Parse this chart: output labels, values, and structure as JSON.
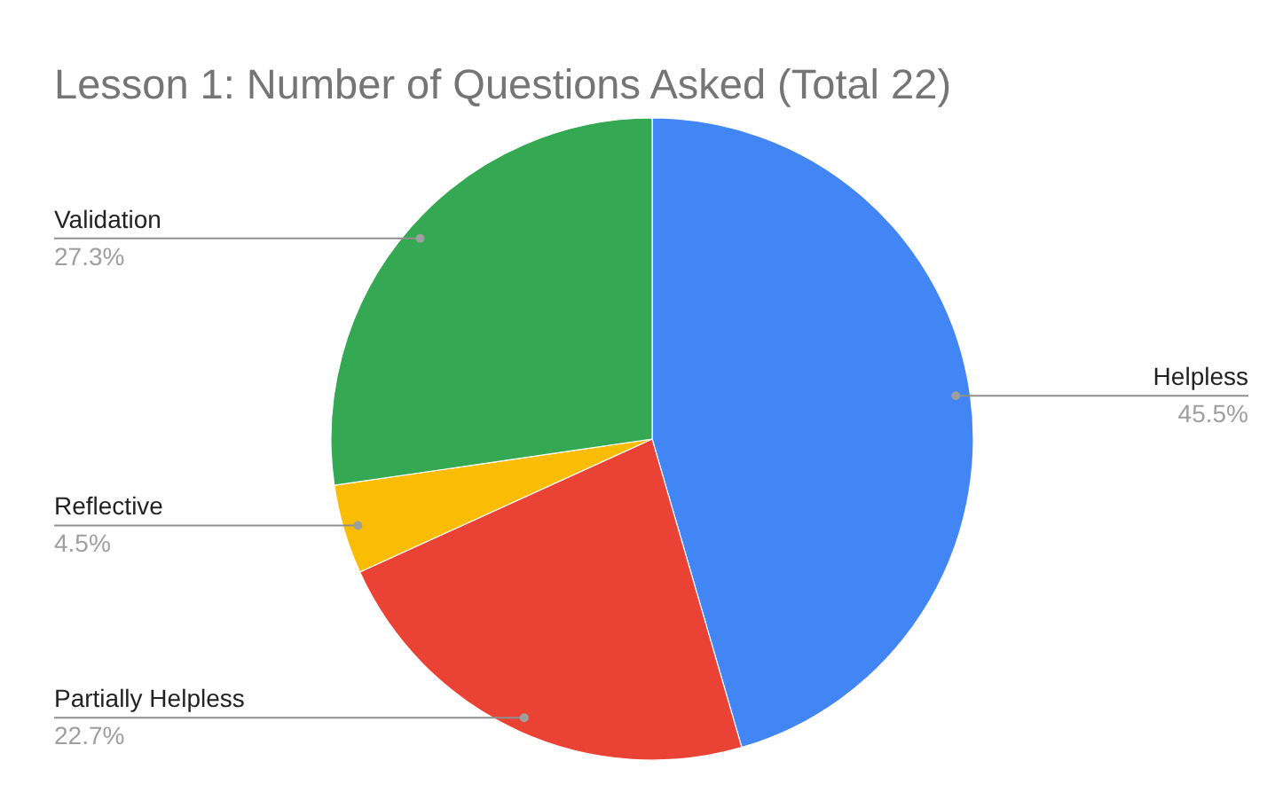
{
  "chart_data": {
    "type": "pie",
    "title": "Lesson 1: Number of Questions Asked (Total 22)",
    "categories": [
      "Helpless",
      "Partially Helpless",
      "Reflective",
      "Validation"
    ],
    "values": [
      45.5,
      22.7,
      4.5,
      27.3
    ],
    "colors": [
      "#4285f4",
      "#ea4335",
      "#fbbc04",
      "#34a853"
    ],
    "value_labels": [
      "45.5%",
      "22.7%",
      "4.5%",
      "27.3%"
    ]
  }
}
